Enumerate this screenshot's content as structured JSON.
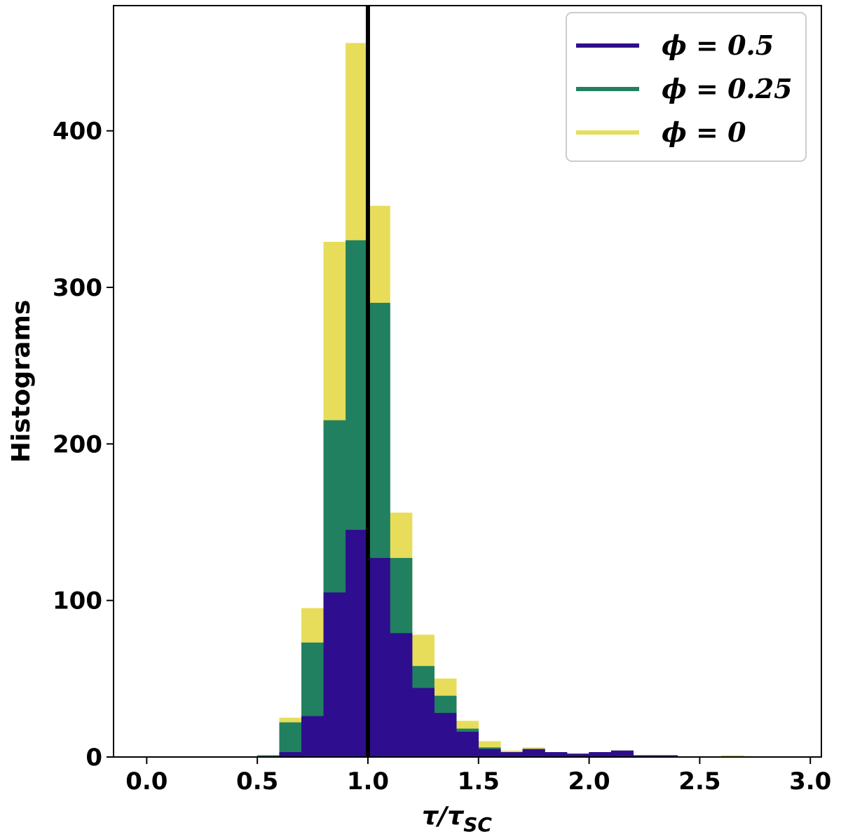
{
  "chart_data": {
    "type": "bar",
    "xlabel": "τ/τ",
    "xlabel_sub": "SC",
    "ylabel": "Histograms",
    "xlim": [
      -0.15,
      3.05
    ],
    "ylim": [
      0,
      480
    ],
    "xticks": [
      "0.0",
      "0.5",
      "1.0",
      "1.5",
      "2.0",
      "2.5",
      "3.0"
    ],
    "xtick_values": [
      0,
      0.5,
      1.0,
      1.5,
      2.0,
      2.5,
      3.0
    ],
    "yticks": [
      "0",
      "100",
      "200",
      "300",
      "400"
    ],
    "ytick_values": [
      0,
      100,
      200,
      300,
      400
    ],
    "grid": false,
    "legend_position": "top-right",
    "vertical_line": {
      "x": 1.0,
      "color": "#000000"
    },
    "bin_edges": [
      0.5,
      0.6,
      0.7,
      0.8,
      0.9,
      1.0,
      1.1,
      1.2,
      1.3,
      1.4,
      1.5,
      1.6,
      1.7,
      1.8,
      1.9,
      2.0,
      2.1,
      2.2,
      2.3,
      2.4,
      2.5,
      2.6,
      2.7
    ],
    "series": [
      {
        "name": "ϕ = 0",
        "color": "#e7dd5a",
        "values": [
          1,
          25,
          95,
          329,
          456,
          352,
          156,
          78,
          50,
          23,
          10,
          4,
          6,
          3,
          2,
          3,
          4,
          1,
          1,
          0,
          0,
          1
        ]
      },
      {
        "name": "ϕ = 0.25",
        "color": "#208060",
        "values": [
          1,
          22,
          73,
          215,
          330,
          290,
          127,
          58,
          39,
          18,
          6,
          3,
          5,
          3,
          2,
          3,
          4,
          1,
          1,
          0,
          0,
          0
        ]
      },
      {
        "name": "ϕ = 0.5",
        "color": "#2e0e8e",
        "values": [
          0,
          3,
          26,
          105,
          145,
          127,
          79,
          44,
          28,
          16,
          5,
          3,
          5,
          3,
          2,
          3,
          4,
          1,
          1,
          0,
          0,
          0
        ]
      }
    ],
    "legend": [
      {
        "label": "ϕ = 0.5",
        "color": "#2e0e8e"
      },
      {
        "label": "ϕ = 0.25",
        "color": "#208060"
      },
      {
        "label": "ϕ = 0",
        "color": "#e7dd5a"
      }
    ]
  }
}
